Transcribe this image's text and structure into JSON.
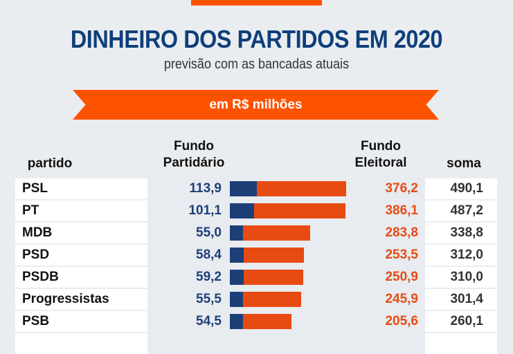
{
  "header": {
    "title": "DINHEIRO DOS PARTIDOS EM 2020",
    "subtitle": "previsão com as bancadas atuais",
    "unit_banner": "em R$ milhões"
  },
  "colors": {
    "fundo_partidario": "#1c3f78",
    "fundo_eleitoral": "#e84b12",
    "accent": "#fd5200",
    "title": "#0e3f7a"
  },
  "chart_data": {
    "type": "bar",
    "stacked": true,
    "orientation": "horizontal",
    "columns": {
      "partido": "partido",
      "fp_line1": "Fundo",
      "fp_line2": "Partidário",
      "fe_line1": "Fundo",
      "fe_line2": "Eleitoral",
      "soma": "soma"
    },
    "categories": [
      "PSL",
      "PT",
      "MDB",
      "PSD",
      "PSDB",
      "Progressistas",
      "PSB"
    ],
    "series": [
      {
        "name": "Fundo Partidário",
        "values": [
          113.9,
          101.1,
          55.0,
          58.4,
          59.2,
          55.5,
          54.5
        ],
        "labels": [
          "113,9",
          "101,1",
          "55,0",
          "58,4",
          "59,2",
          "55,5",
          "54,5"
        ]
      },
      {
        "name": "Fundo Eleitoral",
        "values": [
          376.2,
          386.1,
          283.8,
          253.5,
          250.9,
          245.9,
          205.6
        ],
        "labels": [
          "376,2",
          "386,1",
          "283,8",
          "253,5",
          "250,9",
          "245,9",
          "205,6"
        ]
      }
    ],
    "totals": [
      "490,1",
      "487,2",
      "338,8",
      "312,0",
      "310,0",
      "301,4",
      "260,1"
    ]
  }
}
